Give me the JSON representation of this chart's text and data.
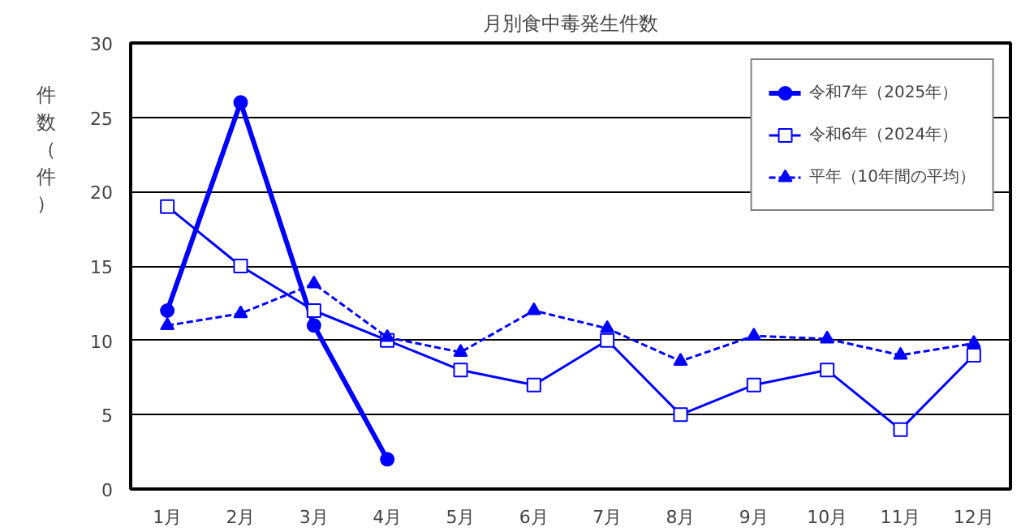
{
  "chart_data": {
    "type": "line",
    "title": "月別食中毒発生件数",
    "ylabel": "件数（件）",
    "categories": [
      "1月",
      "2月",
      "3月",
      "4月",
      "5月",
      "6月",
      "7月",
      "8月",
      "9月",
      "10月",
      "11月",
      "12月"
    ],
    "series": [
      {
        "name": "令和7年（2025年）",
        "color": "#0000ff",
        "values": [
          12,
          26,
          11,
          2,
          null,
          null,
          null,
          null,
          null,
          null,
          null,
          null
        ],
        "marker": "circle",
        "line_style": "solid"
      },
      {
        "name": "令和6年（2024年）",
        "color": "#0000ff",
        "values": [
          19,
          15,
          12,
          10,
          8,
          7,
          10,
          5,
          7,
          8,
          4,
          9
        ],
        "marker": "square",
        "line_style": "solid"
      },
      {
        "name": "平年（10年間の平均）",
        "color": "#0000ff",
        "values": [
          11,
          11.8,
          13.8,
          10.2,
          9.2,
          12,
          10.8,
          8.6,
          10.3,
          10.1,
          9,
          9.8
        ],
        "marker": "triangle",
        "line_style": "dashed"
      }
    ],
    "ylim": [
      0,
      30
    ],
    "yticks": [
      0,
      5,
      10,
      15,
      20,
      25,
      30
    ],
    "grid": "y",
    "legend": "top right"
  }
}
